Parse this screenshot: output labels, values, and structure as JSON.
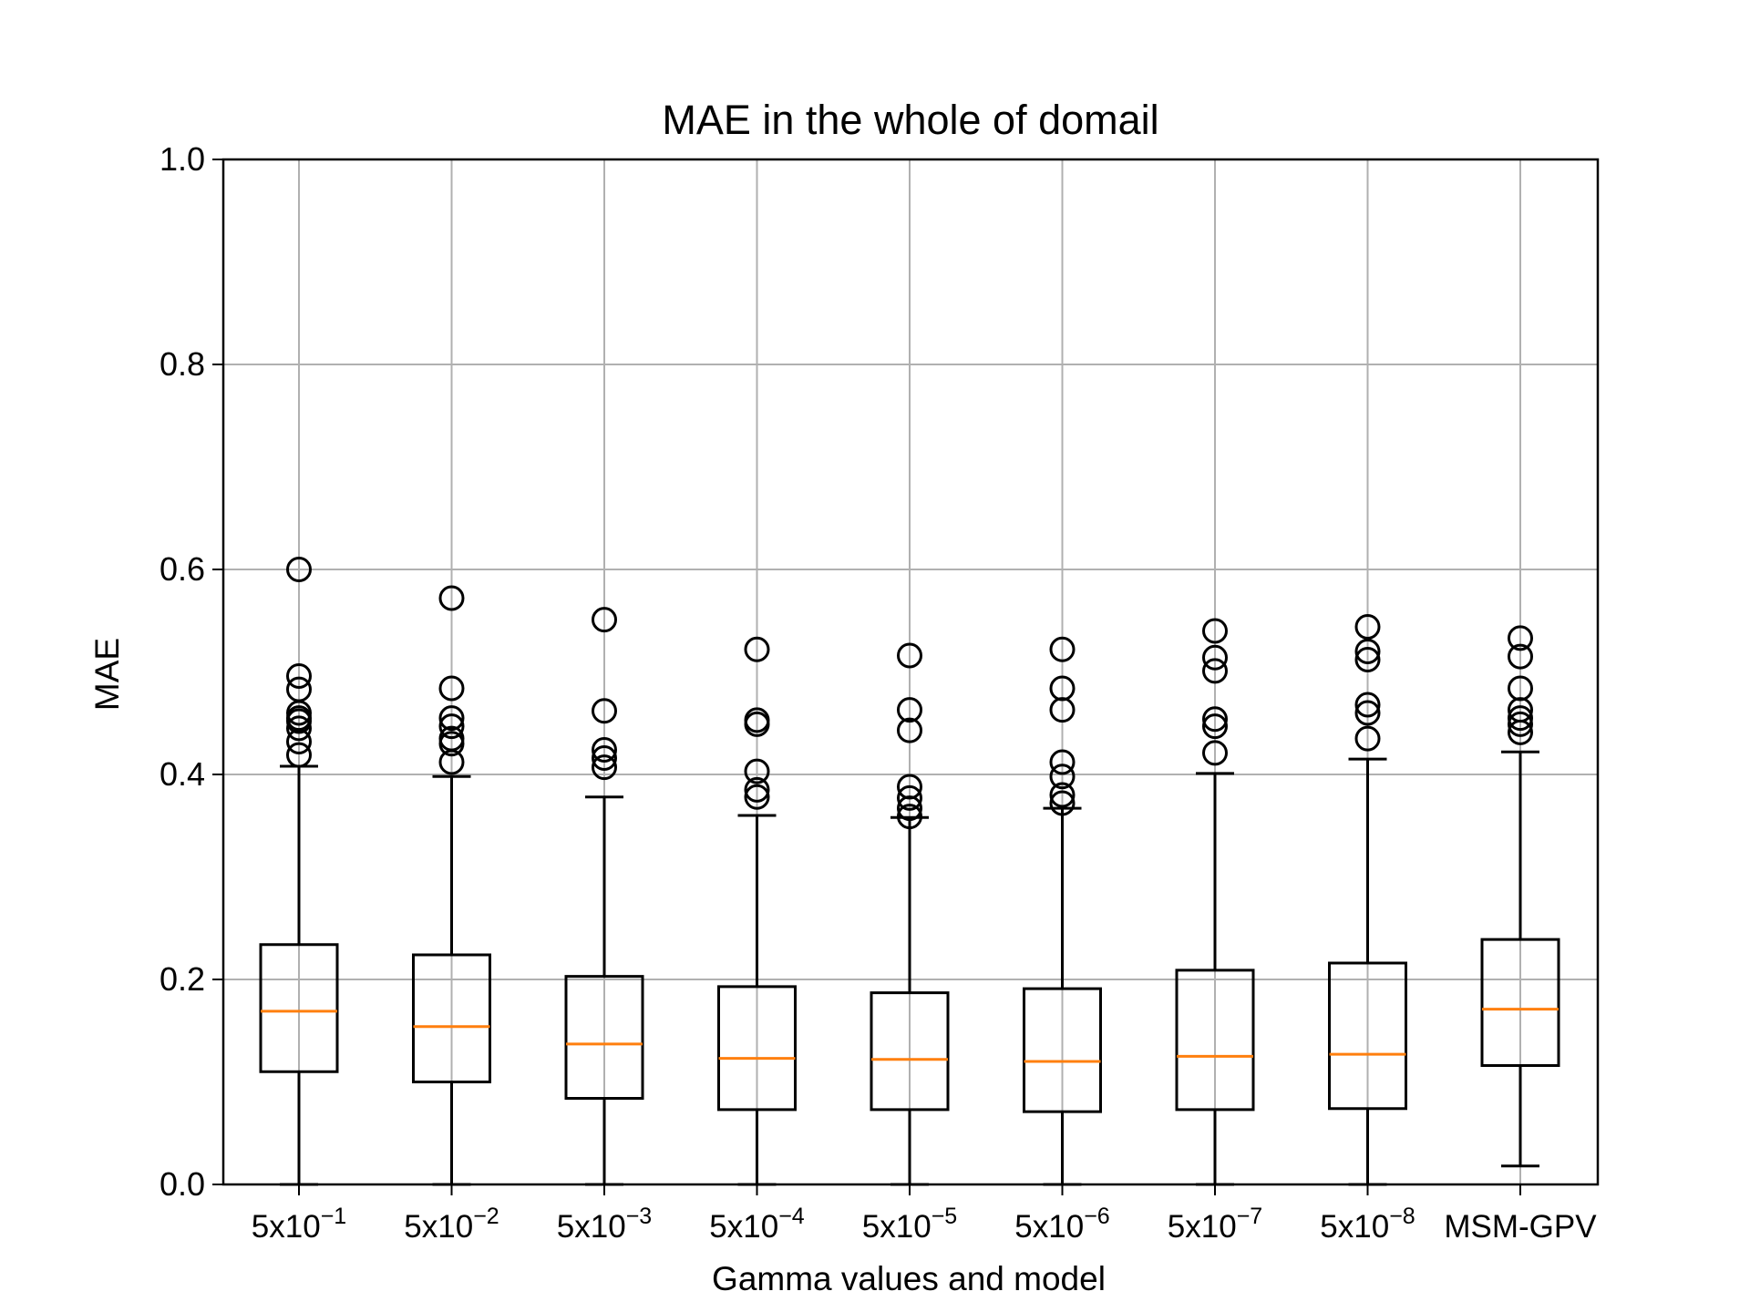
{
  "chart_data": {
    "type": "box",
    "title": "MAE in the whole of domail",
    "xlabel": "Gamma values and model",
    "ylabel": "MAE",
    "ylim": [
      0,
      1.0
    ],
    "yticks": [
      "0.0",
      "0.2",
      "0.4",
      "0.6",
      "0.8",
      "1.0"
    ],
    "grid": true,
    "categories": [
      {
        "base": "5x10",
        "exp": "−1"
      },
      {
        "base": "5x10",
        "exp": "−2"
      },
      {
        "base": "5x10",
        "exp": "−3"
      },
      {
        "base": "5x10",
        "exp": "−4"
      },
      {
        "base": "5x10",
        "exp": "−5"
      },
      {
        "base": "5x10",
        "exp": "−6"
      },
      {
        "base": "5x10",
        "exp": "−7"
      },
      {
        "base": "5x10",
        "exp": "−8"
      },
      {
        "base": "MSM-GPV",
        "exp": ""
      }
    ],
    "boxes": [
      {
        "whislo": 0.0,
        "q1": 0.11,
        "med": 0.169,
        "q3": 0.234,
        "whishi": 0.408,
        "fliers": [
          0.419,
          0.432,
          0.445,
          0.452,
          0.455,
          0.46,
          0.483,
          0.496,
          0.6
        ]
      },
      {
        "whislo": 0.0,
        "q1": 0.1,
        "med": 0.154,
        "q3": 0.224,
        "whishi": 0.398,
        "fliers": [
          0.412,
          0.43,
          0.435,
          0.447,
          0.455,
          0.484,
          0.572
        ]
      },
      {
        "whislo": 0.0,
        "q1": 0.084,
        "med": 0.137,
        "q3": 0.203,
        "whishi": 0.378,
        "fliers": [
          0.407,
          0.416,
          0.424,
          0.462,
          0.551
        ]
      },
      {
        "whislo": 0.0,
        "q1": 0.073,
        "med": 0.123,
        "q3": 0.193,
        "whishi": 0.36,
        "fliers": [
          0.378,
          0.385,
          0.403,
          0.449,
          0.453,
          0.522
        ]
      },
      {
        "whislo": 0.0,
        "q1": 0.073,
        "med": 0.122,
        "q3": 0.187,
        "whishi": 0.358,
        "fliers": [
          0.359,
          0.367,
          0.377,
          0.388,
          0.443,
          0.463,
          0.516
        ]
      },
      {
        "whislo": 0.0,
        "q1": 0.071,
        "med": 0.12,
        "q3": 0.191,
        "whishi": 0.367,
        "fliers": [
          0.372,
          0.38,
          0.398,
          0.412,
          0.463,
          0.484,
          0.522
        ]
      },
      {
        "whislo": 0.0,
        "q1": 0.073,
        "med": 0.125,
        "q3": 0.209,
        "whishi": 0.401,
        "fliers": [
          0.421,
          0.447,
          0.454,
          0.501,
          0.514,
          0.54
        ]
      },
      {
        "whislo": 0.0,
        "q1": 0.074,
        "med": 0.127,
        "q3": 0.216,
        "whishi": 0.415,
        "fliers": [
          0.435,
          0.46,
          0.468,
          0.512,
          0.52,
          0.544
        ]
      },
      {
        "whislo": 0.018,
        "q1": 0.116,
        "med": 0.171,
        "q3": 0.239,
        "whishi": 0.422,
        "fliers": [
          0.441,
          0.449,
          0.455,
          0.463,
          0.484,
          0.515,
          0.533
        ]
      }
    ],
    "colors": {
      "box": "#000000",
      "median": "#ff7f0e",
      "grid": "#b0b0b0"
    }
  }
}
